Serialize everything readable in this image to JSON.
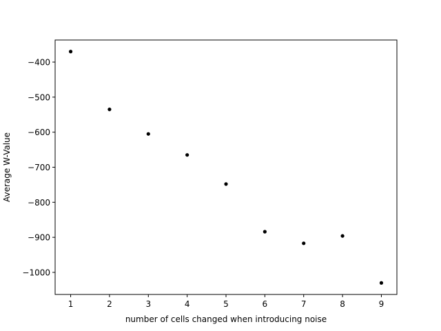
{
  "chart_data": {
    "type": "scatter",
    "title": "",
    "xlabel": "number of cells changed when introducing noise",
    "ylabel": "Average W-Value",
    "x": [
      1,
      2,
      3,
      4,
      5,
      6,
      7,
      8,
      9
    ],
    "y": [
      -370,
      -535,
      -605,
      -665,
      -748,
      -884,
      -917,
      -896,
      -1030
    ],
    "xlim": [
      0.6,
      9.4
    ],
    "ylim": [
      -1063,
      -337
    ],
    "xticks": [
      1,
      2,
      3,
      4,
      5,
      6,
      7,
      8,
      9
    ],
    "xtick_labels": [
      "1",
      "2",
      "3",
      "4",
      "5",
      "6",
      "7",
      "8",
      "9"
    ],
    "yticks": [
      -400,
      -500,
      -600,
      -700,
      -800,
      -900,
      -1000
    ],
    "ytick_labels": [
      "−400",
      "−500",
      "−600",
      "−700",
      "−800",
      "−900",
      "−1000"
    ],
    "grid": false,
    "marker_color": "#000000"
  }
}
